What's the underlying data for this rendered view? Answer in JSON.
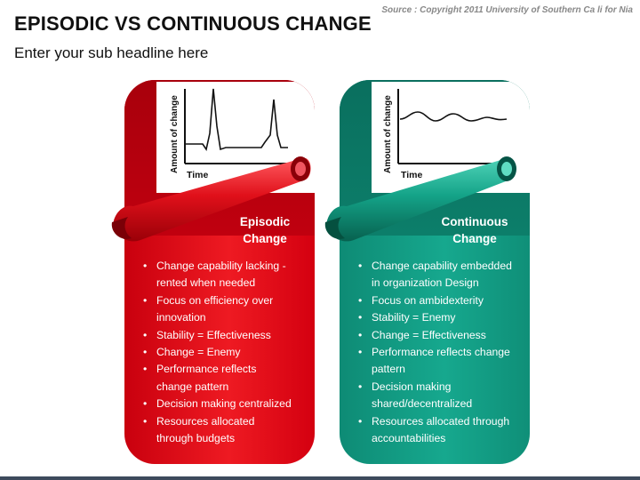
{
  "header": {
    "title": "EPISODIC VS CONTINUOUS CHANGE",
    "subtitle": "Enter your sub headline here",
    "source": "Source : Copyright 2011 University of Southern Ca li for Nia"
  },
  "cards": [
    {
      "title_line1": "Episodic",
      "title_line2": "Change",
      "color": "#e5121c",
      "graph": {
        "y_label": "Amount of change",
        "x_label": "Time",
        "pattern": "spikes"
      },
      "bullets": [
        "Change capability lacking -",
        "rented when needed",
        "Focus on efficiency over",
        "innovation",
        "Stability = Effectiveness",
        "Change = Enemy",
        "Performance reflects",
        "change pattern",
        "Decision making centralized",
        "Resources allocated",
        "through budgets"
      ]
    },
    {
      "title_line1": "Continuous",
      "title_line2": "Change",
      "color": "#14a388",
      "graph": {
        "y_label": "Amount of change",
        "x_label": "Time",
        "pattern": "waves"
      },
      "bullets": [
        "Change capability embedded",
        "in organization Design",
        "Focus on ambidexterity",
        "Stability = Enemy",
        "Change = Effectiveness",
        "Performance reflects change",
        "pattern",
        "Decision making",
        "shared/decentralized",
        "Resources allocated through",
        "accountabilities"
      ]
    }
  ]
}
